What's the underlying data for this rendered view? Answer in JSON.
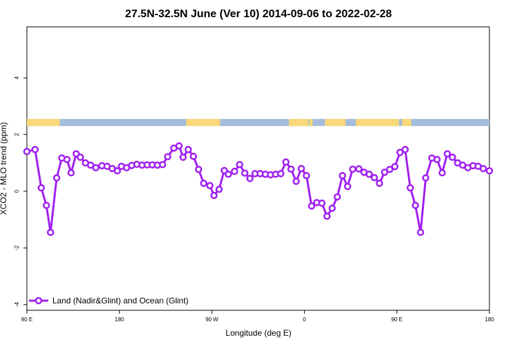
{
  "chart_data": {
    "type": "line",
    "title": "27.5N-32.5N June (Ver 10)   2014-09-06 to 2022-02-28",
    "xlabel": "Longitude (deg E)",
    "ylabel": "XCO2 - MLO trend (ppm)",
    "xlim": [
      90,
      540
    ],
    "ylim": [
      -4.2,
      5.8
    ],
    "x_ticks": [
      {
        "value": 90,
        "label": "90 E"
      },
      {
        "value": 180,
        "label": "180"
      },
      {
        "value": 270,
        "label": "90 W"
      },
      {
        "value": 360,
        "label": "0"
      },
      {
        "value": 450,
        "label": "90 E"
      },
      {
        "value": 540,
        "label": "180"
      }
    ],
    "y_ticks": [
      {
        "value": -4,
        "label": "-4"
      },
      {
        "value": -2,
        "label": "-2"
      },
      {
        "value": 0,
        "label": "0"
      },
      {
        "value": 2,
        "label": "2"
      },
      {
        "value": 4,
        "label": "4"
      }
    ],
    "grid": false,
    "legend_position": "bottom-left",
    "land_mask": {
      "land_color": "#f9d878",
      "ocean_color": "#a4bcdd",
      "y_band": [
        2.3,
        2.55
      ],
      "land_ranges": [
        [
          90,
          122
        ],
        [
          245,
          278
        ],
        [
          345,
          364
        ],
        [
          365,
          368
        ],
        [
          380,
          400
        ],
        [
          410,
          452
        ],
        [
          455,
          464
        ]
      ]
    },
    "series": [
      {
        "name": "Land (Nadir&Glint) and Ocean (Glint)",
        "color": "#a020f0",
        "x": [
          90,
          98,
          104,
          109,
          113,
          119,
          124,
          129,
          133,
          138,
          142,
          147,
          152,
          157,
          163,
          168,
          173,
          178,
          182,
          187,
          192,
          197,
          202,
          207,
          212,
          217,
          222,
          227,
          233,
          238,
          242,
          247,
          252,
          257,
          262,
          268,
          272,
          277,
          282,
          286,
          292,
          297,
          302,
          307,
          312,
          317,
          322,
          327,
          332,
          337,
          342,
          347,
          352,
          357,
          362,
          367,
          372,
          377,
          382,
          387,
          392,
          397,
          402,
          407,
          413,
          418,
          423,
          428,
          433,
          438,
          443,
          448,
          453,
          458,
          463,
          468,
          473,
          478,
          484,
          489,
          494,
          499,
          504,
          509,
          514,
          519,
          524,
          529,
          534,
          540
        ],
        "y": [
          1.4,
          1.47,
          0.12,
          -0.5,
          -1.45,
          0.47,
          1.17,
          1.12,
          0.65,
          1.32,
          1.2,
          1.0,
          0.92,
          0.83,
          0.9,
          0.88,
          0.8,
          0.72,
          0.88,
          0.83,
          0.91,
          0.95,
          0.92,
          0.93,
          0.93,
          0.92,
          0.94,
          1.22,
          1.52,
          1.6,
          1.2,
          1.47,
          1.23,
          0.77,
          0.28,
          0.2,
          -0.15,
          0.07,
          0.73,
          0.6,
          0.7,
          0.94,
          0.64,
          0.45,
          0.62,
          0.62,
          0.6,
          0.58,
          0.6,
          0.62,
          1.03,
          0.78,
          0.35,
          0.8,
          0.55,
          -0.52,
          -0.4,
          -0.42,
          -0.88,
          -0.6,
          -0.2,
          0.55,
          0.17,
          0.78,
          0.79,
          0.67,
          0.6,
          0.48,
          0.28,
          0.67,
          0.77,
          0.87,
          1.37,
          1.47,
          0.12,
          -0.5,
          -1.45,
          0.47,
          1.17,
          1.12,
          0.65,
          1.32,
          1.2,
          1.0,
          0.92,
          0.83,
          0.9,
          0.88,
          0.8,
          0.72
        ]
      }
    ]
  }
}
